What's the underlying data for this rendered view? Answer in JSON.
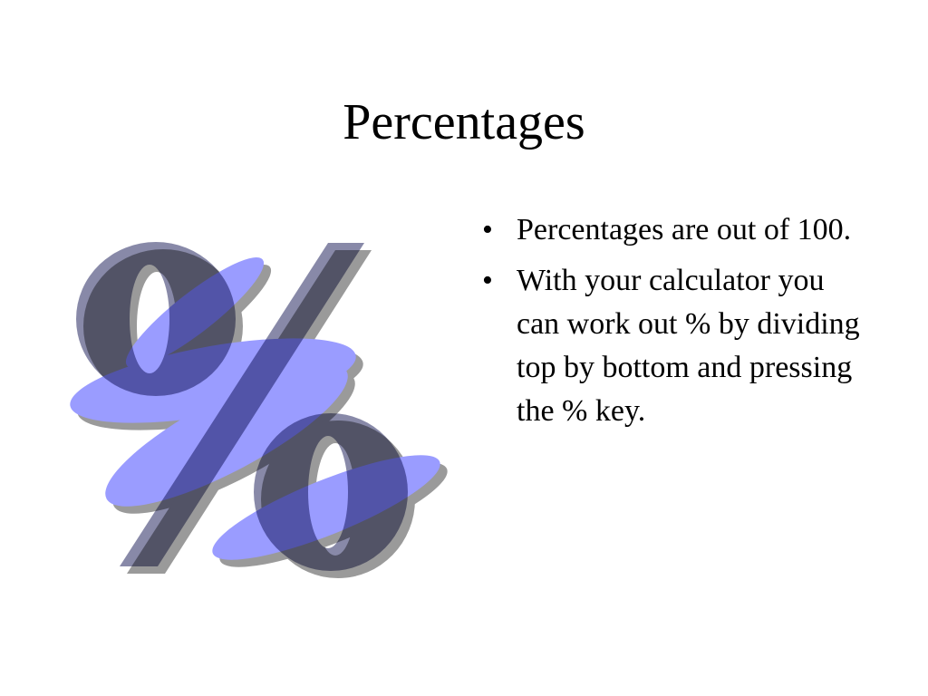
{
  "slide": {
    "title": "Percentages",
    "bullet_symbol": "•",
    "bullets": [
      "Percentages are out of 100.",
      "With your calculator you can work out % by dividing top by bottom and pressing the % key."
    ],
    "clipart": {
      "icon": "percent-sign-icon",
      "colors": {
        "blue": "#9a9cff",
        "slate": "#8889a8",
        "shadow": "#9a9a9a"
      }
    }
  }
}
